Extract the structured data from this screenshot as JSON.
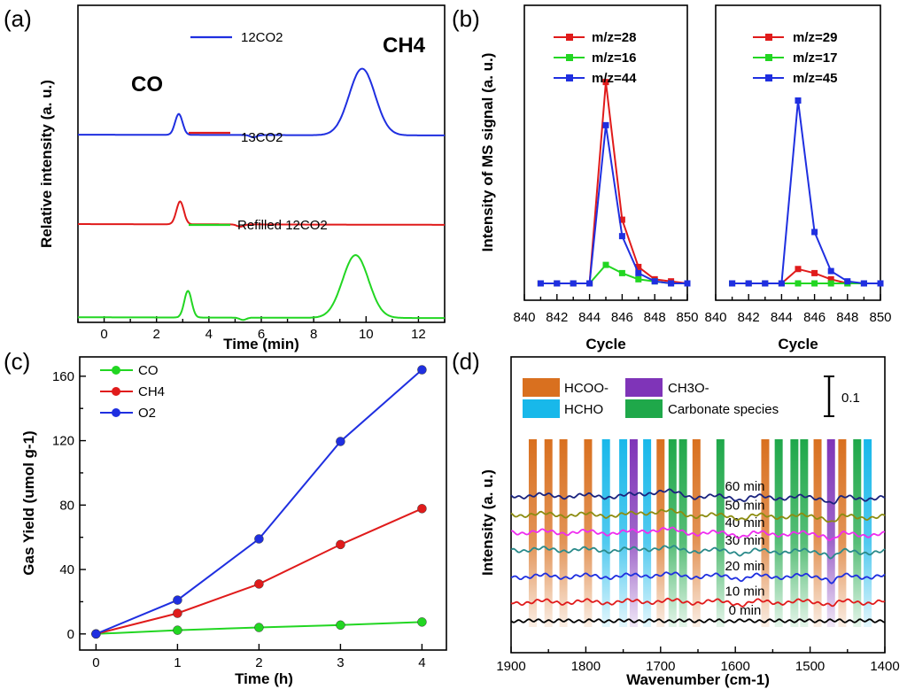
{
  "colors": {
    "blue": "#1f2fe0",
    "red": "#e01b1b",
    "green": "#22d622",
    "hcoo": "#d9701f",
    "hcho": "#18b8ea",
    "ch3o": "#7f34b8",
    "carbonate": "#1fa84a"
  },
  "chart_data": [
    {
      "panel": "(a)",
      "type": "line",
      "xlabel": "Time (min)",
      "ylabel": "Relative intensity (a. u.)",
      "xlim": [
        -1,
        13
      ],
      "xticks": [
        "0",
        "2",
        "4",
        "6",
        "8",
        "10",
        "12"
      ],
      "annotations": [
        "CO",
        "CH4"
      ],
      "series": [
        {
          "name": "12CO2",
          "color": "#1f2fe0",
          "baseline": 0.82,
          "peaks": [
            {
              "x": 2.85,
              "h": 0.11
            },
            {
              "x": 9.85,
              "h": 0.35
            }
          ],
          "dip": 5.7
        },
        {
          "name": "13CO2",
          "color": "#e01b1b",
          "baseline": 0.35,
          "peaks": [
            {
              "x": 2.9,
              "h": 0.12
            }
          ],
          "dip": 5.2
        },
        {
          "name": "Refilled 12CO2",
          "color": "#22d622",
          "baseline": -0.14,
          "peaks": [
            {
              "x": 3.2,
              "h": 0.14
            },
            {
              "x": 9.6,
              "h": 0.33
            }
          ],
          "dip": 5.3
        }
      ]
    },
    {
      "panel": "(b)",
      "type": "line",
      "xlabel": "Cycle",
      "ylabel": "Intensity of MS signal (a. u.)",
      "xlim": [
        840,
        850
      ],
      "xticks": [
        "840",
        "842",
        "844",
        "846",
        "848",
        "850"
      ],
      "x": [
        841,
        842,
        843,
        844,
        845,
        846,
        847,
        848,
        849,
        850
      ],
      "subplots": [
        {
          "series": [
            {
              "name": "m/z=28",
              "color": "#e01b1b",
              "values": [
                0,
                0,
                0,
                0,
                0.98,
                0.31,
                0.08,
                0.02,
                0.01,
                0
              ]
            },
            {
              "name": "m/z=16",
              "color": "#22d622",
              "values": [
                0,
                0,
                0,
                0,
                0.09,
                0.05,
                0.02,
                0.01,
                0,
                0
              ]
            },
            {
              "name": "m/z=44",
              "color": "#1f2fe0",
              "values": [
                0,
                0,
                0,
                0,
                0.77,
                0.23,
                0.05,
                0.01,
                0,
                0
              ]
            }
          ]
        },
        {
          "series": [
            {
              "name": "m/z=29",
              "color": "#e01b1b",
              "values": [
                0,
                0,
                0,
                0,
                0.07,
                0.05,
                0.02,
                0,
                0,
                0
              ]
            },
            {
              "name": "m/z=17",
              "color": "#22d622",
              "values": [
                0,
                0,
                0,
                0,
                0,
                0,
                0,
                0,
                0,
                0
              ]
            },
            {
              "name": "m/z=45",
              "color": "#1f2fe0",
              "values": [
                0,
                0,
                0,
                0,
                0.89,
                0.25,
                0.06,
                0.01,
                0,
                0
              ]
            }
          ]
        }
      ]
    },
    {
      "panel": "(c)",
      "type": "line",
      "xlabel": "Time (h)",
      "ylabel": "Gas Yield (umol g-1)",
      "xlim": [
        -0.2,
        4.3
      ],
      "ylim": [
        -10,
        172
      ],
      "xticks": [
        "0",
        "1",
        "2",
        "3",
        "4"
      ],
      "yticks": [
        "0",
        "40",
        "80",
        "120",
        "160"
      ],
      "x": [
        0,
        1,
        2,
        3,
        4
      ],
      "series": [
        {
          "name": "CO",
          "color": "#22d622",
          "values": [
            0,
            2.3,
            4,
            5.5,
            7.4
          ]
        },
        {
          "name": "CH4",
          "color": "#e01b1b",
          "values": [
            0,
            12.8,
            31,
            55.5,
            77.8
          ]
        },
        {
          "name": "O2",
          "color": "#1f2fe0",
          "values": [
            0,
            21,
            59,
            119.5,
            164
          ]
        }
      ]
    },
    {
      "panel": "(d)",
      "type": "line",
      "xlabel": "Wavenumber (cm-1)",
      "ylabel": "Intensity (a. u.)",
      "xlim": [
        1900,
        1400
      ],
      "xticks": [
        "1900",
        "1800",
        "1700",
        "1600",
        "1500",
        "1400"
      ],
      "scale_bar": "0.1",
      "legend": [
        {
          "name": "HCOO-",
          "color": "#d9701f"
        },
        {
          "name": "CH3O-",
          "color": "#7f34b8"
        },
        {
          "name": "HCHO",
          "color": "#18b8ea"
        },
        {
          "name": "Carbonate species",
          "color": "#1fa84a"
        }
      ],
      "bands": [
        {
          "x": 1871,
          "type": "hcoo"
        },
        {
          "x": 1850,
          "type": "hcoo"
        },
        {
          "x": 1830,
          "type": "hcoo"
        },
        {
          "x": 1797,
          "type": "hcoo"
        },
        {
          "x": 1773,
          "type": "hcho"
        },
        {
          "x": 1750,
          "type": "hcho"
        },
        {
          "x": 1736,
          "type": "ch3o"
        },
        {
          "x": 1718,
          "type": "hcho"
        },
        {
          "x": 1700,
          "type": "hcoo"
        },
        {
          "x": 1684,
          "type": "carbonate"
        },
        {
          "x": 1670,
          "type": "carbonate"
        },
        {
          "x": 1652,
          "type": "hcoo"
        },
        {
          "x": 1620,
          "type": "carbonate"
        },
        {
          "x": 1560,
          "type": "hcoo"
        },
        {
          "x": 1542,
          "type": "carbonate"
        },
        {
          "x": 1521,
          "type": "carbonate"
        },
        {
          "x": 1508,
          "type": "carbonate"
        },
        {
          "x": 1490,
          "type": "hcoo"
        },
        {
          "x": 1472,
          "type": "ch3o"
        },
        {
          "x": 1457,
          "type": "hcoo"
        },
        {
          "x": 1437,
          "type": "carbonate"
        },
        {
          "x": 1423,
          "type": "hcho"
        }
      ],
      "series": [
        {
          "name": "0 min",
          "color": "#000000",
          "offset": 0
        },
        {
          "name": "10 min",
          "color": "#e01b1b",
          "offset": 0.14
        },
        {
          "name": "20 min",
          "color": "#1f2fe0",
          "offset": 0.33
        },
        {
          "name": "30 min",
          "color": "#2a8a8a",
          "offset": 0.52
        },
        {
          "name": "40 min",
          "color": "#ef2cef",
          "offset": 0.65
        },
        {
          "name": "50 min",
          "color": "#8c8c10",
          "offset": 0.78
        },
        {
          "name": "60 min",
          "color": "#1a237e",
          "offset": 0.92
        }
      ]
    }
  ],
  "labels": {
    "panel_a": "(a)",
    "panel_b": "(b)",
    "panel_c": "(c)",
    "panel_d": "(d)",
    "a_xlabel": "Time (min)",
    "a_ylabel": "Relative intensity (a. u.)",
    "a_co": "CO",
    "a_ch4": "CH4",
    "a_leg1": "12CO2",
    "a_leg2": "13CO2",
    "a_leg3": "Refilled 12CO2",
    "b_xlabel1": "Cycle",
    "b_xlabel2": "Cycle",
    "b_ylabel": "Intensity of MS signal (a. u.)",
    "b_l1": "m/z=28",
    "b_l2": "m/z=16",
    "b_l3": "m/z=44",
    "b_r1": "m/z=29",
    "b_r2": "m/z=17",
    "b_r3": "m/z=45",
    "c_xlabel": "Time (h)",
    "c_ylabel": "Gas Yield (umol g-1)",
    "c_l1": "CO",
    "c_l2": "CH4",
    "c_l3": "O2",
    "d_xlabel": "Wavenumber (cm-1)",
    "d_ylabel": "Intensity (a. u.)",
    "d_leg1": "HCOO-",
    "d_leg2": "CH3O-",
    "d_leg3": "HCHO",
    "d_leg4": "Carbonate species",
    "d_scale": "0.1"
  }
}
